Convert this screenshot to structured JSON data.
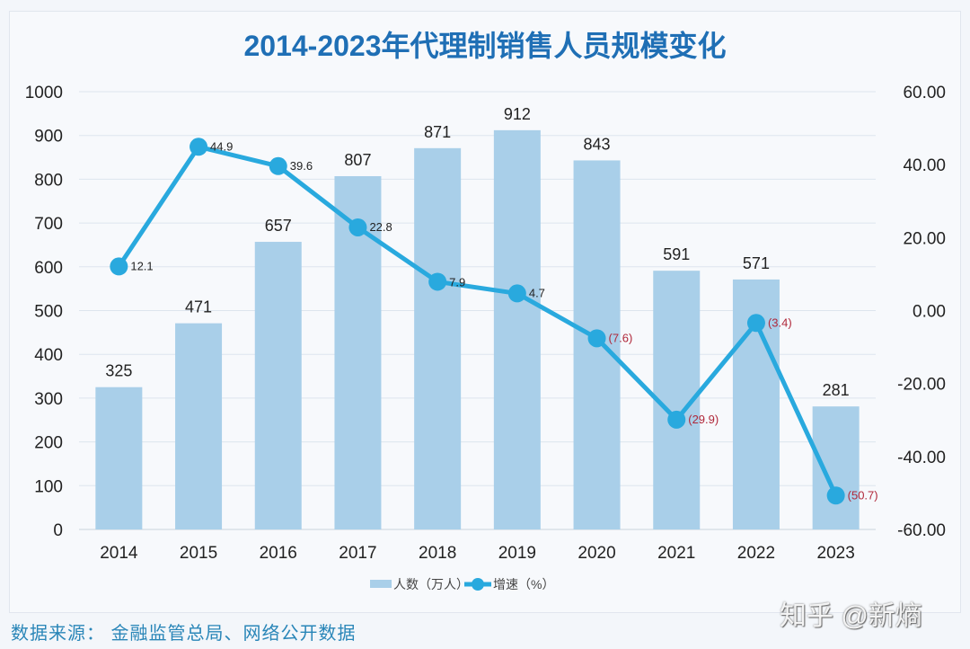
{
  "chart_data": {
    "type": "bar+line",
    "title": "2014-2023年代理制销售人员规模变化",
    "categories": [
      "2014",
      "2015",
      "2016",
      "2017",
      "2018",
      "2019",
      "2020",
      "2021",
      "2022",
      "2023"
    ],
    "series": [
      {
        "name": "人数（万人）",
        "type": "bar",
        "axis": "left",
        "values": [
          325,
          471,
          657,
          807,
          871,
          912,
          843,
          591,
          571,
          281
        ],
        "color": "#a9cfe9"
      },
      {
        "name": "增速（%）",
        "type": "line",
        "axis": "right",
        "values": [
          12.1,
          44.9,
          39.6,
          22.8,
          7.9,
          4.7,
          -7.6,
          -29.9,
          -3.4,
          -50.7
        ],
        "labels": [
          "12.1",
          "44.9",
          "39.6",
          "22.8",
          "7.9",
          "4.7",
          "(7.6)",
          "(29.9)",
          "(3.4)",
          "(50.7)"
        ],
        "color": "#29a9de"
      }
    ],
    "y_left": {
      "range": [
        0,
        1000
      ],
      "ticks": [
        "0",
        "100",
        "200",
        "300",
        "400",
        "500",
        "600",
        "700",
        "800",
        "900",
        "1000"
      ]
    },
    "y_right": {
      "range": [
        -60,
        60
      ],
      "ticks": [
        "-60.00",
        "-40.00",
        "-20.00",
        "0.00",
        "20.00",
        "40.00",
        "60.00"
      ]
    },
    "grid": true,
    "legend": "bottom",
    "title_color": "#1f6fb5",
    "negative_label_color": "#b0283a"
  },
  "footer": {
    "source": "数据来源：  金融监管总局、网络公开数据",
    "watermark": "知乎 @新熵"
  }
}
